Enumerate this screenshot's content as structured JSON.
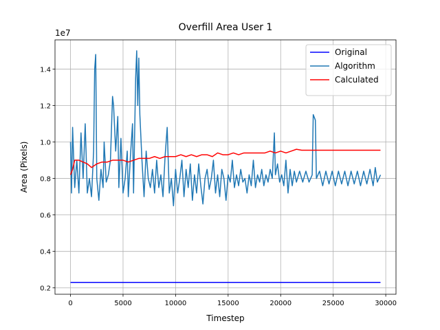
{
  "chart_data": {
    "type": "line",
    "title": "Overfill Area User 1",
    "x_label": "Timestep",
    "y_label": "Area (Pixels)",
    "y_offset_label": "1e7",
    "xlim": [
      -1475,
      30975
    ],
    "xticks": [
      0,
      5000,
      10000,
      15000,
      20000,
      25000,
      30000
    ],
    "ylim": [
      0.165,
      1.56
    ],
    "yticks": [
      0.2,
      0.4,
      0.6,
      0.8,
      {
        "value": 1,
        "label": "1.0"
      },
      1.2,
      1.4
    ],
    "grid": true,
    "legend": "upper right",
    "series": [
      {
        "name": "Original",
        "color": "#0000ff",
        "x": [
          0,
          29500
        ],
        "values": [
          0.23,
          0.23
        ]
      },
      {
        "name": "Algorithm",
        "color": "#1f77b4",
        "x": [
          0,
          100,
          200,
          400,
          600,
          800,
          1000,
          1200,
          1400,
          1600,
          1800,
          2000,
          2200,
          2300,
          2400,
          2500,
          2700,
          2900,
          3100,
          3200,
          3400,
          3600,
          3800,
          4000,
          4100,
          4300,
          4500,
          4600,
          4800,
          5000,
          5200,
          5400,
          5500,
          5700,
          5900,
          6000,
          6200,
          6300,
          6400,
          6500,
          6600,
          6800,
          7000,
          7200,
          7400,
          7600,
          7800,
          8000,
          8200,
          8400,
          8600,
          8800,
          9000,
          9200,
          9400,
          9600,
          9800,
          10000,
          10200,
          10400,
          10600,
          10800,
          11000,
          11200,
          11400,
          11600,
          11800,
          12000,
          12200,
          12400,
          12600,
          12800,
          13000,
          13200,
          13400,
          13600,
          13800,
          14000,
          14200,
          14400,
          14600,
          14800,
          15000,
          15200,
          15400,
          15600,
          15800,
          16000,
          16200,
          16400,
          16600,
          16800,
          17000,
          17200,
          17400,
          17600,
          17800,
          18000,
          18200,
          18400,
          18600,
          18800,
          19000,
          19200,
          19400,
          19500,
          19700,
          19900,
          20100,
          20300,
          20500,
          20700,
          20900,
          21100,
          21300,
          21500,
          21800,
          22100,
          22400,
          22700,
          23000,
          23100,
          23300,
          23400,
          23700,
          24000,
          24300,
          24600,
          24900,
          25200,
          25500,
          25800,
          26100,
          26400,
          26700,
          27000,
          27300,
          27600,
          27900,
          28200,
          28500,
          28800,
          29000,
          29200,
          29500
        ],
        "values": [
          1.0,
          0.72,
          1.08,
          0.75,
          0.9,
          0.72,
          1.05,
          0.8,
          1.1,
          0.72,
          0.8,
          0.7,
          0.95,
          1.4,
          1.48,
          0.8,
          0.68,
          0.85,
          0.75,
          1.0,
          0.78,
          0.82,
          0.9,
          1.25,
          1.2,
          0.95,
          1.14,
          0.75,
          1.02,
          0.72,
          0.8,
          0.95,
          0.7,
          0.92,
          1.1,
          0.72,
          1.35,
          1.5,
          1.2,
          1.46,
          1.15,
          0.9,
          0.7,
          0.95,
          0.8,
          0.75,
          0.85,
          0.72,
          0.9,
          0.75,
          0.82,
          0.7,
          0.92,
          1.08,
          0.72,
          0.8,
          0.65,
          0.85,
          0.72,
          0.8,
          0.9,
          0.7,
          0.85,
          0.75,
          0.88,
          0.68,
          0.82,
          0.72,
          0.88,
          0.76,
          0.66,
          0.8,
          0.85,
          0.74,
          0.8,
          0.9,
          0.72,
          0.82,
          0.7,
          0.85,
          0.8,
          0.68,
          0.82,
          0.78,
          0.9,
          0.75,
          0.82,
          0.76,
          0.85,
          0.78,
          0.8,
          0.72,
          0.82,
          0.76,
          0.9,
          0.75,
          0.82,
          0.78,
          0.85,
          0.76,
          0.82,
          0.78,
          0.85,
          0.8,
          1.05,
          0.82,
          0.88,
          0.78,
          0.82,
          0.76,
          0.9,
          0.72,
          0.85,
          0.76,
          0.84,
          0.78,
          0.84,
          0.78,
          0.84,
          0.78,
          0.82,
          1.15,
          1.12,
          0.8,
          0.84,
          0.76,
          0.84,
          0.77,
          0.84,
          0.76,
          0.84,
          0.77,
          0.84,
          0.76,
          0.84,
          0.77,
          0.84,
          0.76,
          0.84,
          0.77,
          0.85,
          0.76,
          0.86,
          0.78,
          0.82
        ]
      },
      {
        "name": "Calculated",
        "color": "#ff0000",
        "x": [
          0,
          200,
          400,
          800,
          1200,
          1600,
          2000,
          2500,
          3000,
          3500,
          4000,
          4500,
          5000,
          5500,
          6000,
          6500,
          7000,
          7500,
          8000,
          8500,
          9000,
          9500,
          10000,
          10500,
          11000,
          11500,
          12000,
          12500,
          13000,
          13500,
          14000,
          14500,
          15000,
          15500,
          16000,
          16500,
          17000,
          17500,
          18000,
          18500,
          19000,
          19500,
          20000,
          20500,
          21000,
          21500,
          22000,
          23000,
          24000,
          25000,
          26000,
          27000,
          28000,
          29000,
          29500
        ],
        "values": [
          0.82,
          0.85,
          0.9,
          0.9,
          0.89,
          0.88,
          0.86,
          0.88,
          0.89,
          0.89,
          0.9,
          0.9,
          0.9,
          0.89,
          0.9,
          0.91,
          0.91,
          0.91,
          0.92,
          0.91,
          0.92,
          0.92,
          0.92,
          0.93,
          0.92,
          0.93,
          0.92,
          0.93,
          0.93,
          0.92,
          0.94,
          0.93,
          0.93,
          0.94,
          0.93,
          0.94,
          0.94,
          0.94,
          0.94,
          0.94,
          0.95,
          0.94,
          0.95,
          0.94,
          0.95,
          0.96,
          0.955,
          0.955,
          0.955,
          0.955,
          0.955,
          0.955,
          0.955,
          0.955,
          0.955
        ]
      }
    ]
  }
}
